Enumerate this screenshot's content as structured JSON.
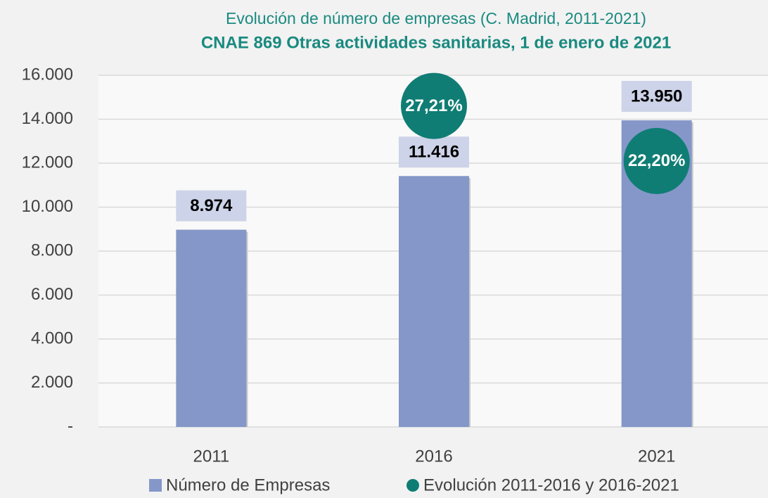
{
  "chart_data": {
    "type": "bar",
    "title": "Evolución de número de empresas (C. Madrid, 2011-2021)",
    "subtitle": "CNAE 869 Otras actividades sanitarias, 1 de enero de 2021",
    "categories": [
      "2011",
      "2016",
      "2021"
    ],
    "series": [
      {
        "name": "Número de Empresas",
        "color": "#8497c8",
        "values": [
          8974,
          11416,
          13950
        ],
        "value_labels": [
          "8.974",
          "11.416",
          "13.950"
        ]
      },
      {
        "name": "Evolución 2011-2016 y 2016-2021",
        "color": "#0f7d74",
        "axis": "y2",
        "values": [
          null,
          27.21,
          22.2
        ],
        "value_labels": [
          null,
          "27,21%",
          "22,20%"
        ]
      }
    ],
    "ylim": [
      0,
      16000
    ],
    "yticks": [
      {
        "value": 0,
        "label": "-"
      },
      {
        "value": 2000,
        "label": "2.000"
      },
      {
        "value": 4000,
        "label": "4.000"
      },
      {
        "value": 6000,
        "label": "6.000"
      },
      {
        "value": 8000,
        "label": "8.000"
      },
      {
        "value": 10000,
        "label": "10.000"
      },
      {
        "value": 12000,
        "label": "12.000"
      },
      {
        "value": 14000,
        "label": "14.000"
      },
      {
        "value": 16000,
        "label": "16.000"
      }
    ],
    "y2lim": [
      -2,
      30
    ],
    "grid": true
  }
}
